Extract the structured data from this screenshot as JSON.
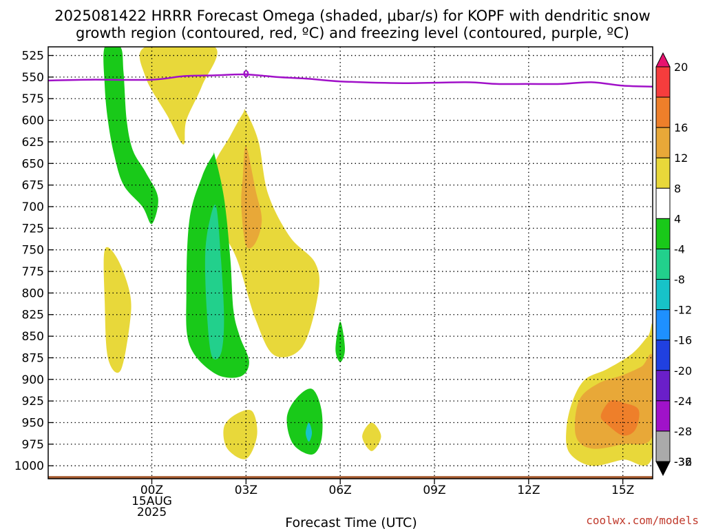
{
  "chart_data": {
    "type": "contour-time-height",
    "title_line1": "2025081422 HRRR Forecast Omega (shaded, μbar/s) for KOPF with dendritic snow",
    "title_line2": "growth region (contoured, red, ºC) and freezing level (contoured, purple, ºC)",
    "xlabel": "Forecast Time (UTC)",
    "xlim_hours": [
      -3.3,
      15.95
    ],
    "ylim_hPa": [
      1015,
      515
    ],
    "y_ticks": [
      525,
      550,
      575,
      600,
      625,
      650,
      675,
      700,
      725,
      750,
      775,
      800,
      825,
      850,
      875,
      900,
      925,
      950,
      975,
      1000
    ],
    "x_ticks": [
      {
        "hour": 0,
        "lines": [
          "00Z",
          "15AUG",
          "2025"
        ]
      },
      {
        "hour": 3,
        "lines": [
          "03Z"
        ]
      },
      {
        "hour": 6,
        "lines": [
          "06Z"
        ]
      },
      {
        "hour": 9,
        "lines": [
          "09Z"
        ]
      },
      {
        "hour": 12,
        "lines": [
          "12Z"
        ]
      },
      {
        "hour": 15,
        "lines": [
          "15Z"
        ]
      }
    ],
    "grid": true,
    "colorbar": {
      "position": "right",
      "labels": [
        "20",
        "16",
        "12",
        "8",
        "4",
        "-4",
        "-8",
        "-12",
        "-16",
        "-20",
        "-24",
        "-28",
        "-32",
        "-36"
      ],
      "colors": [
        "#e8136f",
        "#f53d3d",
        "#ee7f2a",
        "#e8a838",
        "#e8d83a",
        "#ffffff",
        "#19c919",
        "#22d08c",
        "#17c3c8",
        "#1e90ff",
        "#2040e0",
        "#6a1fc9",
        "#a012c9",
        "#aaaaaa",
        "#000000"
      ]
    },
    "freezing_level": {
      "color": "#a010c8",
      "label": "0",
      "label_point": [
        3.0,
        546
      ],
      "points": [
        [
          -3.3,
          554
        ],
        [
          -2,
          553
        ],
        [
          0,
          553
        ],
        [
          1,
          549
        ],
        [
          2,
          548
        ],
        [
          3,
          547
        ],
        [
          4,
          550
        ],
        [
          5,
          552
        ],
        [
          6,
          555
        ],
        [
          8,
          557
        ],
        [
          10,
          556
        ],
        [
          11,
          558
        ],
        [
          12,
          558
        ],
        [
          13,
          558
        ],
        [
          14,
          556
        ],
        [
          15,
          560
        ],
        [
          15.95,
          561
        ]
      ]
    },
    "terrain": {
      "color": "#a55a2e",
      "top_hPa": 1012
    },
    "omega_regions": [
      {
        "label": "rise_upper_left",
        "color": "#19c919",
        "value_range": [
          -8,
          -4
        ],
        "points": [
          [
            -1.5,
            515
          ],
          [
            -1.0,
            515
          ],
          [
            -0.9,
            545
          ],
          [
            -0.8,
            600
          ],
          [
            -0.6,
            635
          ],
          [
            -0.2,
            660
          ],
          [
            0.2,
            690
          ],
          [
            0.0,
            720
          ],
          [
            -0.3,
            700
          ],
          [
            -0.9,
            675
          ],
          [
            -1.2,
            640
          ],
          [
            -1.4,
            600
          ],
          [
            -1.5,
            560
          ]
        ]
      },
      {
        "label": "sink_upper",
        "color": "#e8d83a",
        "value_range": [
          4,
          8
        ],
        "points": [
          [
            -0.2,
            515
          ],
          [
            2.0,
            515
          ],
          [
            1.6,
            560
          ],
          [
            1.1,
            600
          ],
          [
            1.0,
            628
          ],
          [
            0.5,
            595
          ],
          [
            -0.2,
            550
          ]
        ]
      },
      {
        "label": "sink_left_lower",
        "color": "#e8d83a",
        "value_range": [
          4,
          8
        ],
        "points": [
          [
            -1.5,
            750
          ],
          [
            -1.1,
            760
          ],
          [
            -0.7,
            800
          ],
          [
            -0.7,
            835
          ],
          [
            -1.0,
            890
          ],
          [
            -1.4,
            875
          ],
          [
            -1.5,
            810
          ]
        ]
      },
      {
        "label": "sink_mid",
        "color": "#e8d83a",
        "value_range": [
          4,
          8
        ],
        "points": [
          [
            3.0,
            590
          ],
          [
            3.4,
            625
          ],
          [
            3.7,
            685
          ],
          [
            4.4,
            735
          ],
          [
            5.2,
            765
          ],
          [
            5.3,
            800
          ],
          [
            4.8,
            862
          ],
          [
            3.9,
            872
          ],
          [
            3.3,
            830
          ],
          [
            2.7,
            760
          ],
          [
            2.0,
            710
          ],
          [
            1.9,
            660
          ],
          [
            2.5,
            618
          ],
          [
            2.9,
            592
          ]
        ]
      },
      {
        "label": "sink_mid_core",
        "color": "#e8a838",
        "value_range": [
          8,
          12
        ],
        "points": [
          [
            3.0,
            630
          ],
          [
            3.3,
            680
          ],
          [
            3.5,
            715
          ],
          [
            3.3,
            742
          ],
          [
            3.0,
            745
          ],
          [
            2.85,
            700
          ],
          [
            2.9,
            665
          ]
        ]
      },
      {
        "label": "rise_mid",
        "color": "#19c919",
        "value_range": [
          -8,
          -4
        ],
        "points": [
          [
            2.0,
            640
          ],
          [
            2.3,
            690
          ],
          [
            2.5,
            760
          ],
          [
            2.6,
            820
          ],
          [
            2.8,
            850
          ],
          [
            3.1,
            880
          ],
          [
            2.8,
            897
          ],
          [
            2.0,
            893
          ],
          [
            1.2,
            860
          ],
          [
            1.1,
            800
          ],
          [
            1.2,
            715
          ],
          [
            1.6,
            665
          ],
          [
            1.95,
            640
          ]
        ]
      },
      {
        "label": "rise_mid_core",
        "color": "#22d08c",
        "value_range": [
          -12,
          -8
        ],
        "points": [
          [
            2.05,
            700
          ],
          [
            2.2,
            760
          ],
          [
            2.3,
            830
          ],
          [
            2.2,
            870
          ],
          [
            1.9,
            872
          ],
          [
            1.75,
            820
          ],
          [
            1.7,
            755
          ],
          [
            1.85,
            715
          ]
        ]
      },
      {
        "label": "sink_small_03z",
        "color": "#e8d83a",
        "value_range": [
          4,
          8
        ],
        "points": [
          [
            2.7,
            940
          ],
          [
            3.2,
            937
          ],
          [
            3.35,
            965
          ],
          [
            3.0,
            992
          ],
          [
            2.4,
            980
          ],
          [
            2.3,
            955
          ]
        ]
      },
      {
        "label": "rise_small_05z",
        "color": "#19c919",
        "value_range": [
          -8,
          -4
        ],
        "points": [
          [
            5.1,
            911
          ],
          [
            5.4,
            935
          ],
          [
            5.4,
            970
          ],
          [
            5.1,
            987
          ],
          [
            4.5,
            975
          ],
          [
            4.3,
            945
          ],
          [
            4.6,
            922
          ]
        ]
      },
      {
        "label": "rise_small_05z_core",
        "color": "#17c3c8",
        "value_range": [
          -16,
          -12
        ],
        "points": [
          [
            5.0,
            950
          ],
          [
            5.1,
            962
          ],
          [
            5.0,
            972
          ],
          [
            4.9,
            962
          ]
        ]
      },
      {
        "label": "rise_dot_06z",
        "color": "#19c919",
        "value_range": [
          -8,
          -4
        ],
        "points": [
          [
            6.0,
            833
          ],
          [
            6.15,
            865
          ],
          [
            6.0,
            880
          ],
          [
            5.85,
            865
          ]
        ]
      },
      {
        "label": "sink_dot_07z",
        "color": "#e8d83a",
        "value_range": [
          4,
          8
        ],
        "points": [
          [
            7.0,
            950
          ],
          [
            7.3,
            966
          ],
          [
            7.0,
            983
          ],
          [
            6.7,
            966
          ]
        ]
      },
      {
        "label": "sink_lower_right",
        "color": "#e8d83a",
        "value_range": [
          4,
          8
        ],
        "points": [
          [
            15.95,
            845
          ],
          [
            15.95,
            988
          ],
          [
            15.0,
            993
          ],
          [
            14.0,
            1000
          ],
          [
            13.3,
            985
          ],
          [
            13.2,
            958
          ],
          [
            13.4,
            925
          ],
          [
            13.8,
            900
          ],
          [
            14.5,
            888
          ],
          [
            15.3,
            870
          ],
          [
            15.8,
            850
          ]
        ]
      },
      {
        "label": "sink_lower_right_mid",
        "color": "#e8a838",
        "value_range": [
          8,
          12
        ],
        "points": [
          [
            15.95,
            875
          ],
          [
            15.95,
            965
          ],
          [
            15.0,
            975
          ],
          [
            14.0,
            980
          ],
          [
            13.5,
            965
          ],
          [
            13.6,
            925
          ],
          [
            14.2,
            905
          ],
          [
            15.0,
            895
          ],
          [
            15.6,
            885
          ]
        ]
      },
      {
        "label": "sink_lower_right_core",
        "color": "#ee7f2a",
        "value_range": [
          12,
          16
        ],
        "points": [
          [
            14.6,
            925
          ],
          [
            15.0,
            927
          ],
          [
            15.5,
            935
          ],
          [
            15.4,
            958
          ],
          [
            15.0,
            965
          ],
          [
            14.5,
            952
          ],
          [
            14.3,
            942
          ]
        ]
      }
    ]
  },
  "credit": "coolwx.com/models"
}
